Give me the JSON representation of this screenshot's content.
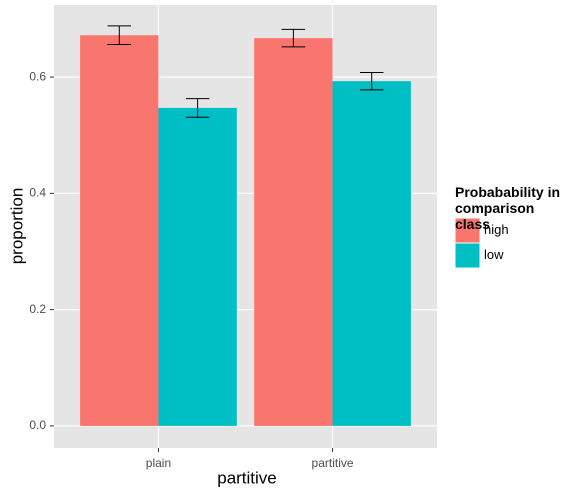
{
  "chart_data": {
    "type": "bar",
    "x_label": "partitive",
    "y_label": "proportion",
    "categories": [
      "plain",
      "partitive"
    ],
    "series": [
      {
        "name": "high",
        "color": "#F8766D",
        "values": [
          0.672,
          0.667
        ],
        "errors": [
          0.016,
          0.015
        ]
      },
      {
        "name": "low",
        "color": "#00BFC4",
        "values": [
          0.547,
          0.593
        ],
        "errors": [
          0.016,
          0.015
        ]
      }
    ],
    "legend_title": "Probabability in comparison class",
    "legend_position": "right",
    "ylim": [
      -0.038,
      0.724
    ],
    "yticks": [
      {
        "value": 0,
        "label": "0.0"
      },
      0.2,
      0.4,
      0.6
    ],
    "grid": true
  }
}
